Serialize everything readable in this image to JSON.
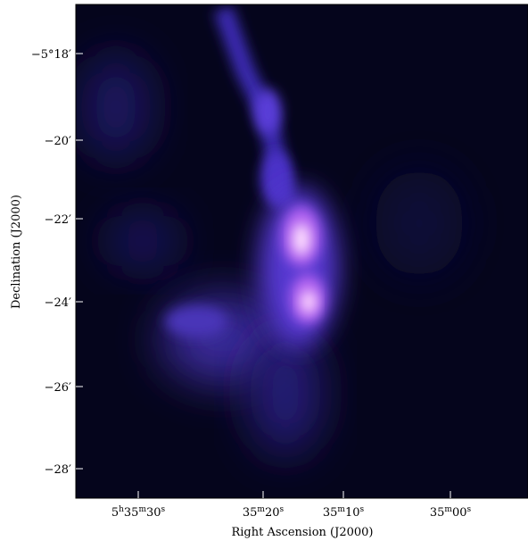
{
  "axes": {
    "x_label": "Right Ascension (J2000)",
    "y_label": "Declination (J2000)",
    "x_ticks": [
      [
        "5",
        "h",
        "35",
        "m",
        "30",
        "s"
      ],
      [
        "35",
        "m",
        "20",
        "s"
      ],
      [
        "35",
        "m",
        "10",
        "s"
      ],
      [
        "35",
        "m",
        "00",
        "s"
      ]
    ],
    "y_ticks": [
      "−5°18′",
      "−20′",
      "−22′",
      "−24′",
      "−26′",
      "−28′"
    ]
  }
}
